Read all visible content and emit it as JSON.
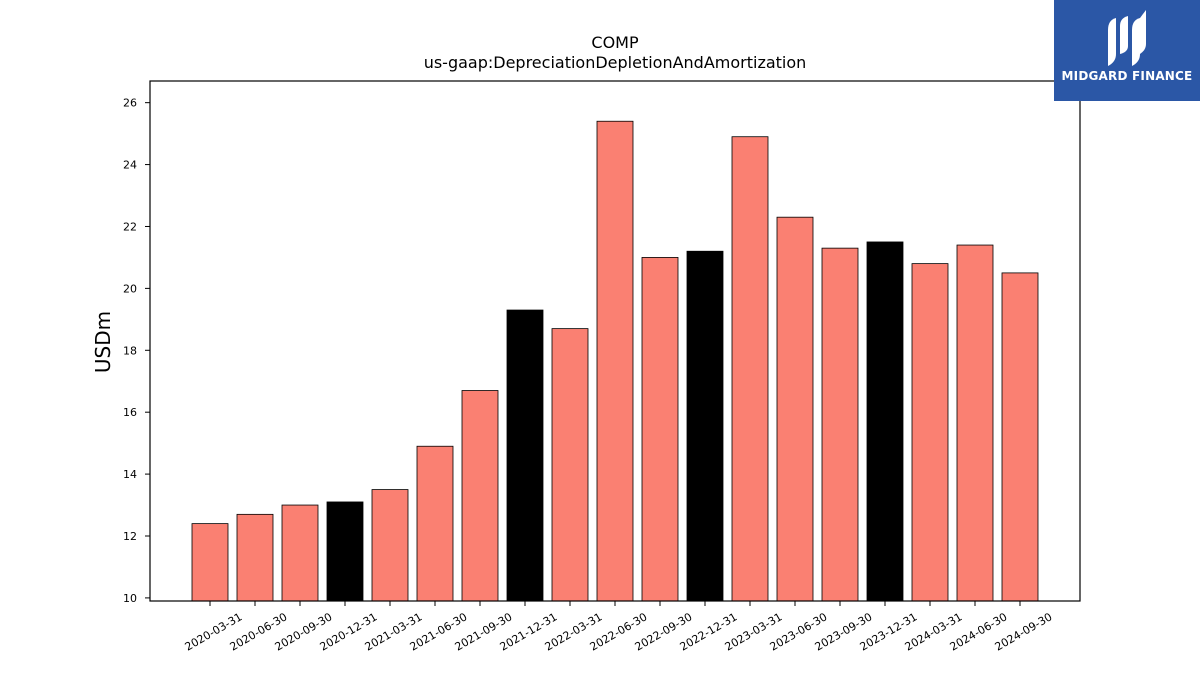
{
  "chart_data": {
    "type": "bar",
    "title": "COMP",
    "subtitle": "us-gaap:DepreciationDepletionAndAmortization",
    "xlabel": "",
    "ylabel": "USDm",
    "ylim": [
      9.9,
      26.7
    ],
    "yticks": [
      10,
      12,
      14,
      16,
      18,
      20,
      22,
      24,
      26
    ],
    "grid": false,
    "colors": {
      "quarter": "#fa8072",
      "year_end": "#000000",
      "edge": "#000000"
    },
    "categories": [
      "2020-03-31",
      "2020-06-30",
      "2020-09-30",
      "2020-12-31",
      "2021-03-31",
      "2021-06-30",
      "2021-09-30",
      "2021-12-31",
      "2022-03-31",
      "2022-06-30",
      "2022-09-30",
      "2022-12-31",
      "2023-03-31",
      "2023-06-30",
      "2023-09-30",
      "2023-12-31",
      "2024-03-31",
      "2024-06-30",
      "2024-09-30"
    ],
    "values": [
      12.4,
      12.7,
      13.0,
      13.1,
      13.5,
      14.9,
      16.7,
      19.3,
      18.7,
      25.4,
      21.0,
      21.2,
      24.9,
      22.3,
      21.3,
      21.5,
      20.8,
      21.4,
      20.5
    ],
    "highlight": [
      false,
      false,
      false,
      true,
      false,
      false,
      false,
      true,
      false,
      false,
      false,
      true,
      false,
      false,
      false,
      true,
      false,
      false,
      false
    ]
  },
  "logo": {
    "text": "MIDGARD FINANCE",
    "name": "midgard-finance-logo"
  }
}
